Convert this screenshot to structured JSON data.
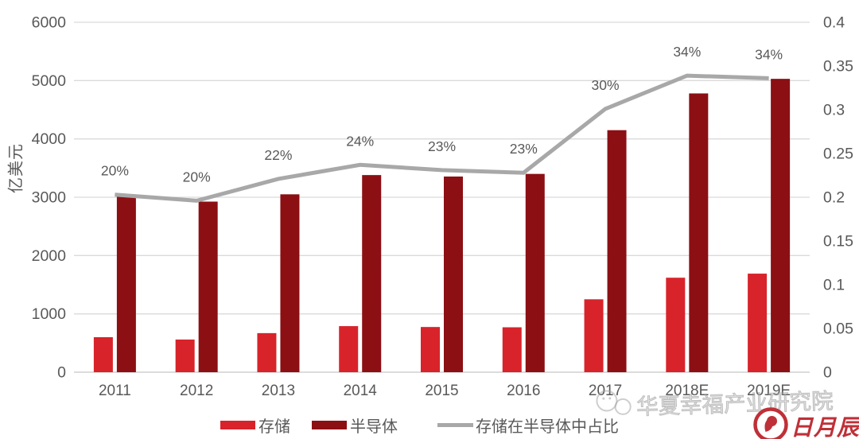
{
  "chart_data": {
    "type": "bar+line",
    "categories": [
      "2011",
      "2012",
      "2013",
      "2014",
      "2015",
      "2016",
      "2017",
      "2018E",
      "2019E"
    ],
    "series": [
      {
        "name": "存储",
        "type": "bar",
        "axis": "left",
        "color": "#d8232a",
        "values": [
          600,
          560,
          670,
          790,
          775,
          770,
          1250,
          1620,
          1690
        ]
      },
      {
        "name": "半导体",
        "type": "bar",
        "axis": "left",
        "color": "#8c0f14",
        "values": [
          3010,
          2925,
          3050,
          3380,
          3355,
          3400,
          4150,
          4780,
          5030
        ]
      },
      {
        "name": "存储在半导体中占比",
        "type": "line",
        "axis": "right",
        "color": "#a8a8a8",
        "values": [
          0.203,
          0.196,
          0.221,
          0.237,
          0.231,
          0.228,
          0.301,
          0.339,
          0.336
        ],
        "point_labels": [
          "20%",
          "20%",
          "22%",
          "24%",
          "23%",
          "23%",
          "30%",
          "34%",
          "34%"
        ]
      }
    ],
    "left_axis": {
      "title": "亿美元",
      "ticks": [
        "0",
        "1000",
        "2000",
        "3000",
        "4000",
        "5000",
        "6000"
      ],
      "min": 0,
      "max": 6000
    },
    "right_axis": {
      "ticks": [
        "0",
        "0.05",
        "0.1",
        "0.15",
        "0.2",
        "0.25",
        "0.3",
        "0.35",
        "0.4"
      ],
      "min": 0,
      "max": 0.4
    },
    "grid": true,
    "legend_position": "bottom"
  },
  "watermark": {
    "text": "华夏幸福产业研究院"
  },
  "logo": {
    "text": "日月辰"
  },
  "style": {
    "grid_color": "#dadada",
    "axis_line_color": "#c6c6c6",
    "tick_label_color": "#595959",
    "point_label_color": "#595959"
  }
}
